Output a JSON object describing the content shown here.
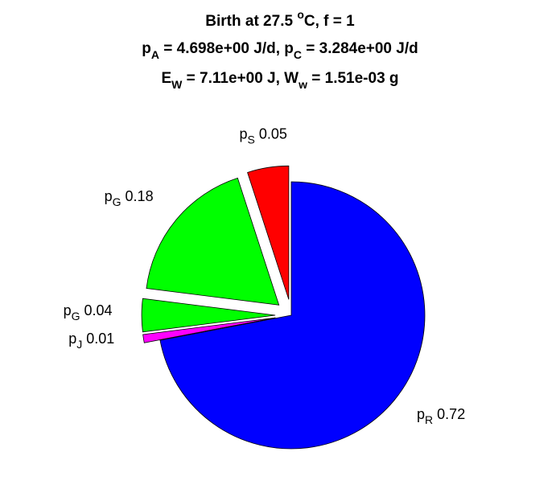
{
  "chart_data": {
    "type": "pie",
    "title": [
      [
        "Birth at 27.5 ",
        {
          "sup": "o"
        },
        "C, f = 1"
      ],
      [
        "p",
        {
          "sub": "A"
        },
        " = 4.698e+00 J/d, p",
        {
          "sub": "C"
        },
        " = 3.284e+00 J/d"
      ],
      [
        "E",
        {
          "sub": "W"
        },
        " = 7.11e+00 J, W",
        {
          "sub": "w"
        },
        " = 1.51e-03 g"
      ]
    ],
    "categories": [
      {
        "text": "p",
        "sub": "S"
      },
      {
        "text": "p",
        "sub": "G"
      },
      {
        "text": "p",
        "sub": "G"
      },
      {
        "text": "p",
        "sub": "J"
      },
      {
        "text": "p",
        "sub": "R"
      }
    ],
    "values": [
      0.05,
      0.18,
      0.04,
      0.01,
      0.72
    ],
    "colors": [
      "#ff0000",
      "#00ff00",
      "#00ff00",
      "#ff00ff",
      "#0000ff"
    ],
    "explode": [
      1,
      1,
      1,
      1,
      0
    ]
  }
}
